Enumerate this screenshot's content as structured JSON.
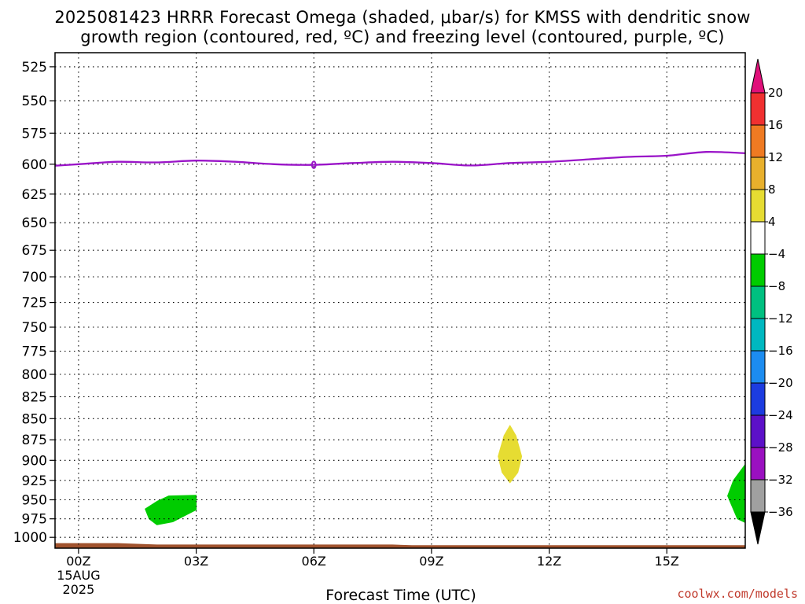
{
  "chart_data": {
    "type": "contour",
    "title_line1": "2025081423 HRRR Forecast Omega (shaded, μbar/s) for KMSS with dendritic snow",
    "title_line2": "growth region (contoured, red, ºC) and freezing level (contoured, purple, ºC)",
    "xlabel": "Forecast Time (UTC)",
    "credit": "coolwx.com/models",
    "x_ticks": [
      {
        "hour": 0,
        "label": "00Z",
        "sub1": "15AUG",
        "sub2": "2025"
      },
      {
        "hour": 3,
        "label": "03Z"
      },
      {
        "hour": 6,
        "label": "06Z"
      },
      {
        "hour": 9,
        "label": "09Z"
      },
      {
        "hour": 12,
        "label": "12Z"
      },
      {
        "hour": 15,
        "label": "15Z"
      }
    ],
    "xlim": [
      -0.6,
      17
    ],
    "y_ticks": [
      525,
      550,
      575,
      600,
      625,
      650,
      675,
      700,
      725,
      750,
      775,
      800,
      825,
      850,
      875,
      900,
      925,
      950,
      975,
      1000
    ],
    "ylim": [
      515,
      1015
    ],
    "y_scale": "log-pressure",
    "grid": true,
    "freezing_level": {
      "color": "#9a14c8",
      "points": [
        [
          -1.0,
          602
        ],
        [
          0.0,
          600
        ],
        [
          1.0,
          598
        ],
        [
          2.0,
          598.5
        ],
        [
          3.0,
          597
        ],
        [
          4.0,
          598
        ],
        [
          5.0,
          600
        ],
        [
          6.0,
          600.5
        ],
        [
          7.0,
          599
        ],
        [
          8.0,
          598
        ],
        [
          9.0,
          599
        ],
        [
          10.0,
          601
        ],
        [
          11.0,
          599
        ],
        [
          12.0,
          598
        ],
        [
          13.0,
          596
        ],
        [
          14.0,
          594
        ],
        [
          15.0,
          593
        ],
        [
          16.0,
          590
        ],
        [
          17.0,
          591
        ]
      ]
    },
    "omega_regions": [
      {
        "value": -6,
        "color": "#00cc00",
        "points": [
          [
            2.0,
            952
          ],
          [
            2.3,
            945
          ],
          [
            3.0,
            944
          ],
          [
            3.0,
            963
          ],
          [
            2.4,
            979
          ],
          [
            2.0,
            983
          ],
          [
            1.8,
            975
          ],
          [
            1.7,
            962
          ]
        ]
      },
      {
        "value": 4,
        "color": "#e6dc32",
        "points": [
          [
            11.0,
            858
          ],
          [
            11.15,
            870
          ],
          [
            11.3,
            895
          ],
          [
            11.2,
            915
          ],
          [
            11.0,
            928
          ],
          [
            10.8,
            915
          ],
          [
            10.7,
            895
          ],
          [
            10.85,
            870
          ]
        ]
      },
      {
        "value": -6,
        "color": "#00cc00",
        "points": [
          [
            17.0,
            905
          ],
          [
            17.0,
            980
          ],
          [
            16.8,
            975
          ],
          [
            16.55,
            945
          ],
          [
            16.7,
            925
          ]
        ]
      }
    ],
    "ground": {
      "color": "#a0522d",
      "points": [
        [
          -1.0,
          1008
        ],
        [
          1.0,
          1008
        ],
        [
          2.0,
          1010
        ],
        [
          8.0,
          1010
        ],
        [
          8.5,
          1011
        ],
        [
          17.0,
          1011
        ]
      ]
    },
    "colorbar": {
      "bins": [
        {
          "from": 16,
          "to": 20,
          "color": "#f03030"
        },
        {
          "from": 12,
          "to": 16,
          "color": "#ef7a22"
        },
        {
          "from": 8,
          "to": 12,
          "color": "#e8b02c"
        },
        {
          "from": 4,
          "to": 8,
          "color": "#e6dc32"
        },
        {
          "from": -4,
          "to": 4,
          "color": "#ffffff"
        },
        {
          "from": -8,
          "to": -4,
          "color": "#00cc00"
        },
        {
          "from": -12,
          "to": -8,
          "color": "#00c080"
        },
        {
          "from": -16,
          "to": -12,
          "color": "#00b8c0"
        },
        {
          "from": -20,
          "to": -16,
          "color": "#1c8cf0"
        },
        {
          "from": -24,
          "to": -20,
          "color": "#1c3ce0"
        },
        {
          "from": -28,
          "to": -24,
          "color": "#5c10c8"
        },
        {
          "from": -32,
          "to": -28,
          "color": "#9a10c0"
        },
        {
          "from": -36,
          "to": -32,
          "color": "#a0a0a0"
        }
      ],
      "top_arrow_color": "#e0107a",
      "bottom_arrow_color": "#000000",
      "labels": [
        "20",
        "16",
        "12",
        "8",
        "4",
        "−4",
        "−8",
        "−12",
        "−16",
        "−20",
        "−24",
        "−28",
        "−32",
        "−36"
      ]
    }
  }
}
